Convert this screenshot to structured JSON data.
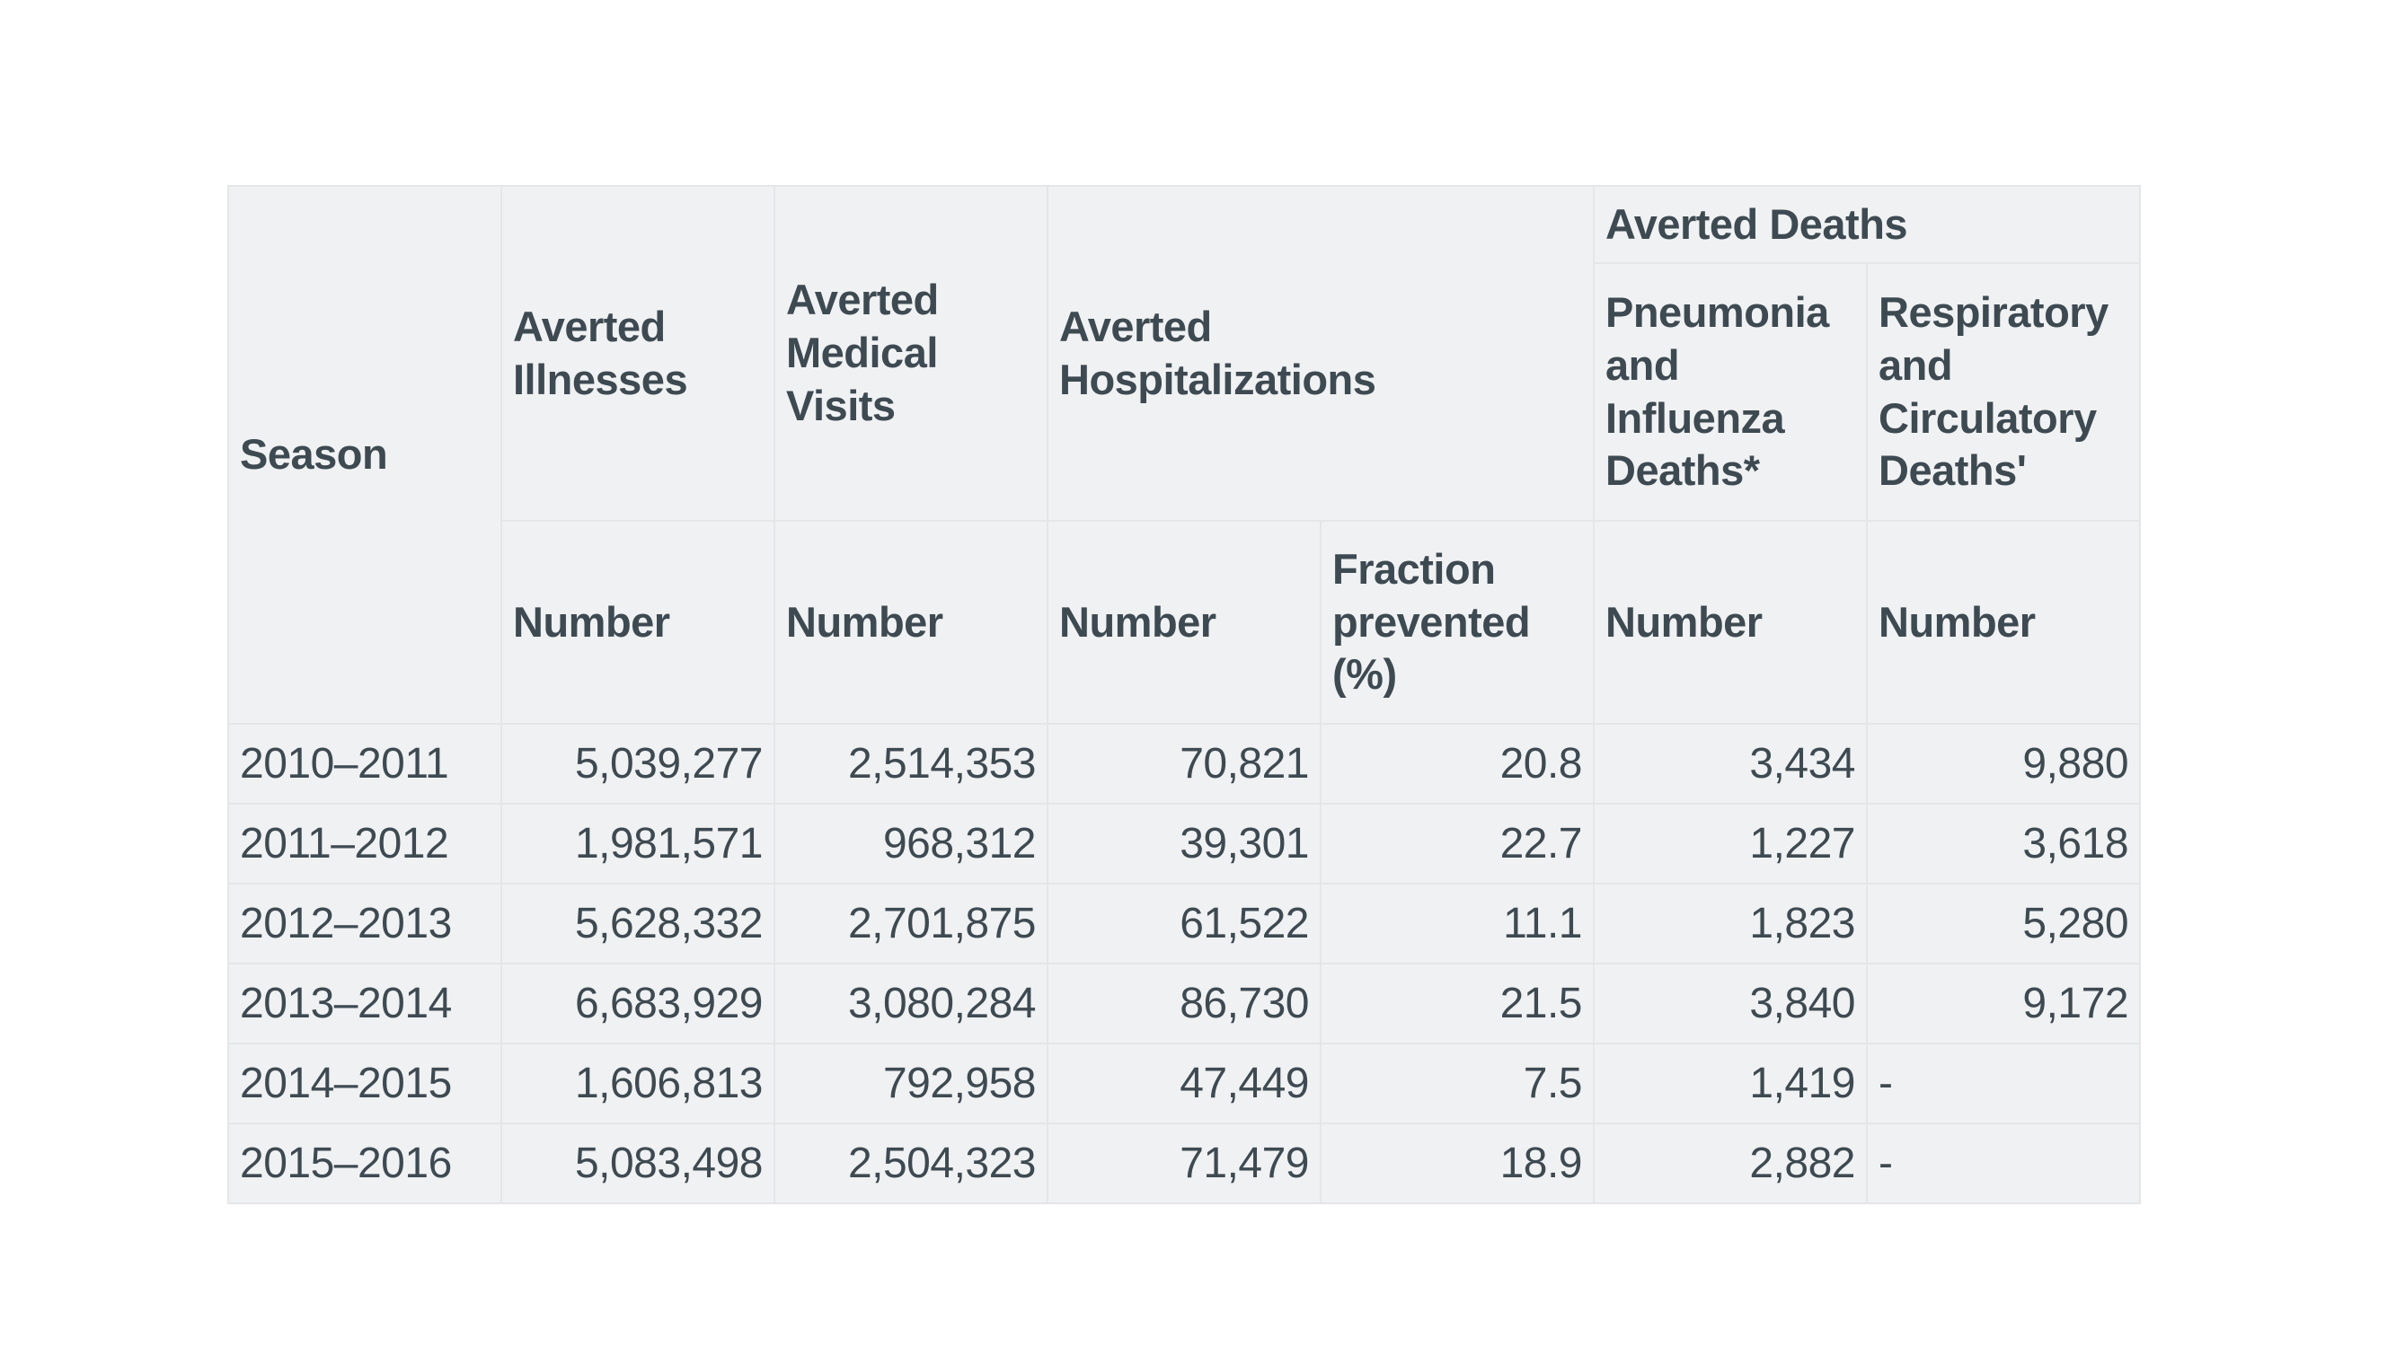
{
  "colors": {
    "page_background": "#ffffff",
    "cell_background": "#f0f1f2",
    "cell_border": "#e4e6e8",
    "text": "#3e4a52"
  },
  "table": {
    "header": {
      "season": "Season",
      "averted_illnesses": "Averted\nIllnesses",
      "averted_medical_visits": "Averted\nMedical\nVisits",
      "averted_hospitalizations": "Averted\nHospitalizations",
      "averted_deaths": "Averted Deaths",
      "pneumonia_influenza_deaths": "Pneumonia\nand\nInfluenza\nDeaths*",
      "respiratory_circulatory_deaths": "Respiratory\nand\nCirculatory\nDeaths'",
      "number": "Number",
      "fraction_prevented": "Fraction\nprevented\n(%)"
    },
    "rows": [
      {
        "season": "2010–2011",
        "illnesses": "5,039,277",
        "medical_visits": "2,514,353",
        "hospitalizations": "70,821",
        "fraction_prevented": "20.8",
        "pneumonia_influenza_deaths": "3,434",
        "respiratory_circulatory_deaths": "9,880"
      },
      {
        "season": "2011–2012",
        "illnesses": "1,981,571",
        "medical_visits": "968,312",
        "hospitalizations": "39,301",
        "fraction_prevented": "22.7",
        "pneumonia_influenza_deaths": "1,227",
        "respiratory_circulatory_deaths": "3,618"
      },
      {
        "season": "2012–2013",
        "illnesses": "5,628,332",
        "medical_visits": "2,701,875",
        "hospitalizations": "61,522",
        "fraction_prevented": "11.1",
        "pneumonia_influenza_deaths": "1,823",
        "respiratory_circulatory_deaths": "5,280"
      },
      {
        "season": "2013–2014",
        "illnesses": "6,683,929",
        "medical_visits": "3,080,284",
        "hospitalizations": "86,730",
        "fraction_prevented": "21.5",
        "pneumonia_influenza_deaths": "3,840",
        "respiratory_circulatory_deaths": "9,172"
      },
      {
        "season": "2014–2015",
        "illnesses": "1,606,813",
        "medical_visits": "792,958",
        "hospitalizations": "47,449",
        "fraction_prevented": "7.5",
        "pneumonia_influenza_deaths": "1,419",
        "respiratory_circulatory_deaths": "-"
      },
      {
        "season": "2015–2016",
        "illnesses": "5,083,498",
        "medical_visits": "2,504,323",
        "hospitalizations": "71,479",
        "fraction_prevented": "18.9",
        "pneumonia_influenza_deaths": "2,882",
        "respiratory_circulatory_deaths": "-"
      }
    ]
  }
}
